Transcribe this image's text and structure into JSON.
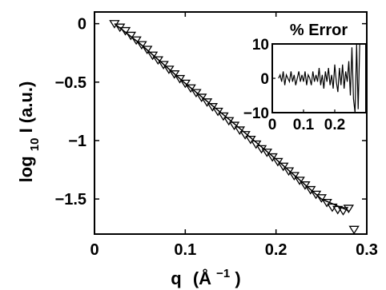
{
  "chart_data": [
    {
      "type": "scatter",
      "title": "",
      "xlabel": "q",
      "xlabel_unit": "(Å⁻¹)",
      "xlabel_unit_base": "(Å",
      "xlabel_unit_exp": "−1",
      "xlabel_unit_close": ")",
      "ylabel": "log₁₀ I (a.u.)",
      "ylabel_base": "log",
      "ylabel_sub": "10",
      "ylabel_rest": " I (a.u.)",
      "xlim": [
        0,
        0.3
      ],
      "ylim": [
        -1.8,
        0.1
      ],
      "xticks": [
        0,
        0.1,
        0.2,
        0.3
      ],
      "xtick_labels": [
        "0",
        "0.1",
        "0.2",
        "0.3"
      ],
      "yticks": [
        0,
        -0.5,
        -1,
        -1.5
      ],
      "ytick_labels": [
        "0",
        "−0.5",
        "−1",
        "−1.5"
      ],
      "grid": false,
      "series": [
        {
          "style": "triangle-down-markers",
          "color": "#000000",
          "x": [
            0.022,
            0.028,
            0.034,
            0.04,
            0.046,
            0.052,
            0.058,
            0.064,
            0.07,
            0.076,
            0.082,
            0.088,
            0.094,
            0.1,
            0.106,
            0.112,
            0.118,
            0.124,
            0.13,
            0.136,
            0.142,
            0.148,
            0.154,
            0.16,
            0.166,
            0.172,
            0.178,
            0.184,
            0.19,
            0.196,
            0.202,
            0.208,
            0.214,
            0.22,
            0.226,
            0.232,
            0.238,
            0.244,
            0.25,
            0.256,
            0.262,
            0.268,
            0.274,
            0.28,
            0.286
          ],
          "y": [
            0.0,
            -0.03,
            -0.06,
            -0.1,
            -0.14,
            -0.18,
            -0.22,
            -0.27,
            -0.31,
            -0.35,
            -0.39,
            -0.43,
            -0.47,
            -0.51,
            -0.55,
            -0.59,
            -0.63,
            -0.67,
            -0.71,
            -0.75,
            -0.79,
            -0.83,
            -0.87,
            -0.91,
            -0.95,
            -0.99,
            -1.03,
            -1.07,
            -1.1,
            -1.14,
            -1.18,
            -1.22,
            -1.26,
            -1.3,
            -1.34,
            -1.38,
            -1.42,
            -1.46,
            -1.49,
            -1.53,
            -1.57,
            -1.59,
            -1.6,
            -1.58,
            -1.76
          ]
        },
        {
          "style": "line",
          "color": "#000000",
          "x": [
            0.022,
            0.05,
            0.1,
            0.15,
            0.2,
            0.25,
            0.28
          ],
          "y": [
            0.0,
            -0.17,
            -0.51,
            -0.83,
            -1.16,
            -1.5,
            -1.6
          ]
        }
      ]
    },
    {
      "type": "line",
      "role": "inset",
      "title": "% Error",
      "xlim": [
        0,
        0.3
      ],
      "ylim": [
        -10,
        10
      ],
      "xticks": [
        0,
        0.1,
        0.2
      ],
      "xtick_labels": [
        "0",
        "0.1",
        "0.2"
      ],
      "yticks": [
        10,
        0,
        -10
      ],
      "ytick_labels": [
        "10",
        "0",
        "−10"
      ],
      "grid": false,
      "series": [
        {
          "color": "#000000",
          "x": [
            0.02,
            0.025,
            0.03,
            0.035,
            0.04,
            0.045,
            0.05,
            0.055,
            0.06,
            0.065,
            0.07,
            0.075,
            0.08,
            0.085,
            0.09,
            0.095,
            0.1,
            0.105,
            0.11,
            0.115,
            0.12,
            0.125,
            0.13,
            0.135,
            0.14,
            0.145,
            0.15,
            0.155,
            0.16,
            0.165,
            0.17,
            0.175,
            0.18,
            0.185,
            0.19,
            0.195,
            0.2,
            0.205,
            0.21,
            0.215,
            0.22,
            0.225,
            0.23,
            0.235,
            0.24,
            0.245,
            0.25,
            0.255,
            0.26,
            0.265,
            0.27,
            0.275,
            0.28
          ],
          "y": [
            0,
            1,
            -1,
            2,
            -2,
            1,
            0,
            -1,
            2,
            -1,
            1,
            -2,
            0,
            2,
            -1,
            1,
            -1,
            2,
            -2,
            1,
            0,
            -2,
            2,
            -1,
            1,
            -1,
            3,
            -2,
            1,
            -3,
            2,
            -1,
            3,
            -2,
            1,
            -3,
            4,
            -1,
            -4,
            3,
            -2,
            4,
            -3,
            2,
            -1,
            5,
            -5,
            9,
            -6,
            -10,
            10,
            -9,
            10
          ]
        }
      ]
    }
  ]
}
